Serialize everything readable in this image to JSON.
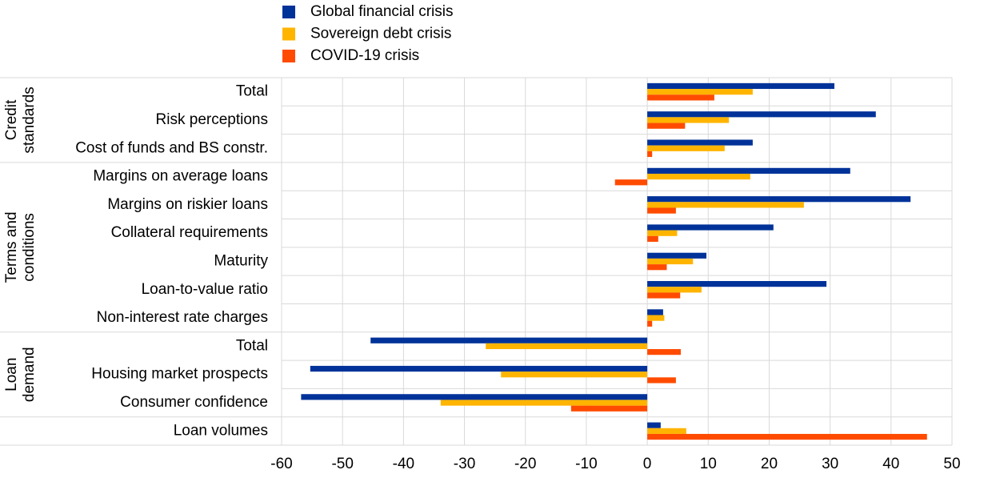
{
  "chart_data": {
    "type": "hbar",
    "category_groups": [
      {
        "label": [
          "Credit",
          "standards"
        ],
        "categories": [
          "Total",
          "Risk perceptions",
          "Cost of funds and BS constr."
        ]
      },
      {
        "label": [
          "Terms and",
          "conditions"
        ],
        "categories": [
          "Margins on average loans",
          "Margins on riskier loans",
          "Collateral requirements",
          "Maturity",
          "Loan-to-value ratio",
          "Non-interest rate charges"
        ]
      },
      {
        "label": [
          "Loan",
          "demand"
        ],
        "categories": [
          "Total",
          "Housing market prospects",
          "Consumer confidence"
        ]
      },
      {
        "label": [],
        "categories": [
          "Loan volumes"
        ]
      }
    ],
    "series": [
      {
        "name": "Global financial crisis",
        "color": "#003299",
        "values": [
          30.7,
          37.5,
          17.3,
          33.3,
          43.2,
          20.7,
          9.7,
          29.4,
          2.6,
          -45.4,
          -55.3,
          -56.8,
          2.2
        ]
      },
      {
        "name": "Sovereign debt crisis",
        "color": "#ffb400",
        "values": [
          17.3,
          13.4,
          12.7,
          16.9,
          25.7,
          4.9,
          7.5,
          8.9,
          2.8,
          -26.5,
          -24.0,
          -33.9,
          6.4
        ]
      },
      {
        "name": "COVID-19 crisis",
        "color": "#ff4b00",
        "values": [
          11.0,
          6.2,
          0.8,
          -5.3,
          4.7,
          1.8,
          3.2,
          5.4,
          0.8,
          5.5,
          4.7,
          -12.5,
          45.9
        ]
      }
    ],
    "xlim": [
      -60,
      50
    ],
    "xticks": [
      -60,
      -50,
      -40,
      -30,
      -20,
      -10,
      0,
      10,
      20,
      30,
      40,
      50
    ],
    "grid": true
  }
}
